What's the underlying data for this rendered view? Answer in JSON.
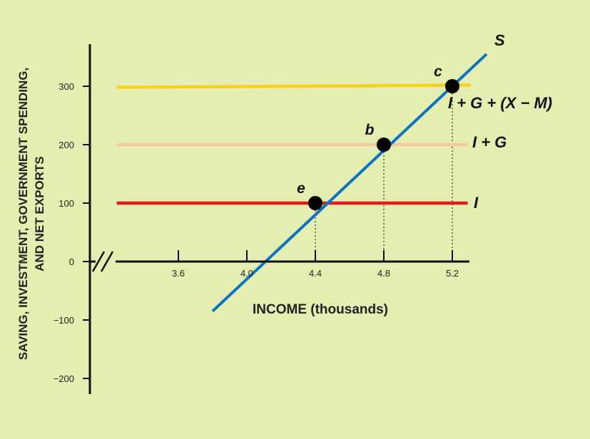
{
  "chart_data": {
    "type": "line",
    "title": "",
    "xlabel": "INCOME (thousands)",
    "ylabel_lines": [
      "SAVING, INVESTMENT, GOVERNMENT SPENDING,",
      "AND NET EXPORTS"
    ],
    "x_ticks": [
      "3.6",
      "4.0",
      "4.4",
      "4.8",
      "5.2"
    ],
    "y_ticks": [
      "300",
      "200",
      "100",
      "0",
      "−100",
      "−200"
    ],
    "y_tick_values": [
      300,
      200,
      100,
      0,
      -100,
      -200
    ],
    "x_tick_values": [
      3.6,
      4.0,
      4.4,
      4.8,
      5.2
    ],
    "xlim": [
      3.6,
      5.2
    ],
    "ylim": [
      -200,
      300
    ],
    "axis_break": true,
    "series": [
      {
        "name": "S",
        "color": "#0a74c4",
        "x": [
          3.8,
          5.4
        ],
        "y": [
          -85,
          355
        ]
      },
      {
        "name": "I",
        "color": "#e01b1b",
        "x": [
          3.24,
          5.29
        ],
        "y": [
          100,
          100
        ]
      },
      {
        "name": "I + G",
        "color": "#f8c6a0",
        "x": [
          3.24,
          5.29
        ],
        "y": [
          200,
          200
        ]
      },
      {
        "name": "I + G + (X − M)",
        "color": "#f7d21a",
        "x": [
          3.24,
          5.31
        ],
        "y": [
          298,
          302
        ]
      }
    ],
    "points": [
      {
        "label": "e",
        "x": 4.4,
        "y": 100
      },
      {
        "label": "b",
        "x": 4.8,
        "y": 200
      },
      {
        "label": "c",
        "x": 5.2,
        "y": 300
      }
    ]
  }
}
